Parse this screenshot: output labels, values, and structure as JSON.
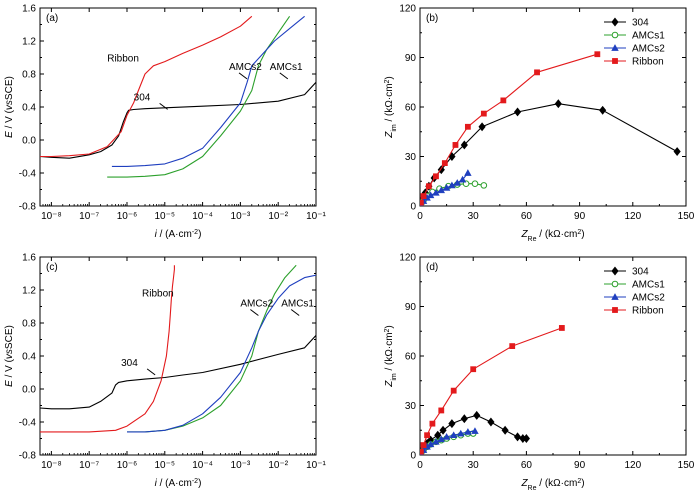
{
  "chart_data": [
    {
      "panel": "(a)",
      "type": "line",
      "xscale": "log",
      "xlim": [
        5e-09,
        0.1
      ],
      "ylim": [
        -0.8,
        1.6
      ],
      "x_tick_labels": [
        "10⁻⁸",
        "10⁻⁷",
        "10⁻⁶",
        "10⁻⁵",
        "10⁻⁴",
        "10⁻³",
        "10⁻²",
        "10⁻¹"
      ],
      "y_tick_labels": [
        "-0.8",
        "-0.4",
        "0.0",
        "0.4",
        "0.8",
        "1.2",
        "1.6"
      ],
      "xlabel": {
        "main": "i / (A·cm",
        "sup": "-2",
        "end": ")"
      },
      "ylabel": {
        "main": "E",
        "rest": " / V (",
        "italic": "vs",
        "end": "SCE)"
      },
      "series": [
        {
          "name": "304",
          "color": "#000000",
          "x": [
            5e-09,
            1e-08,
            3e-08,
            1e-07,
            2e-07,
            4e-07,
            6e-07,
            8e-07,
            1e-06,
            1.1e-06,
            1.5e-06,
            3e-06,
            1e-05,
            0.0001,
            0.001,
            0.01,
            0.05,
            0.1
          ],
          "y": [
            -0.2,
            -0.21,
            -0.22,
            -0.18,
            -0.14,
            -0.06,
            0.05,
            0.22,
            0.33,
            0.36,
            0.37,
            0.38,
            0.39,
            0.41,
            0.43,
            0.47,
            0.55,
            0.7
          ]
        },
        {
          "name": "AMCs1",
          "color": "#2ca02c",
          "x": [
            3e-07,
            1e-06,
            3e-06,
            1e-05,
            3e-05,
            0.0001,
            0.0003,
            0.001,
            0.002,
            0.003,
            0.005,
            0.01,
            0.02
          ],
          "y": [
            -0.45,
            -0.45,
            -0.44,
            -0.42,
            -0.35,
            -0.2,
            0.05,
            0.35,
            0.6,
            0.9,
            1.1,
            1.3,
            1.5
          ]
        },
        {
          "name": "AMCs2",
          "color": "#1f3fbf",
          "x": [
            4e-07,
            1e-06,
            3e-06,
            1e-05,
            3e-05,
            0.0001,
            0.0003,
            0.001,
            0.0015,
            0.002,
            0.004,
            0.008,
            0.02,
            0.05
          ],
          "y": [
            -0.32,
            -0.32,
            -0.31,
            -0.29,
            -0.22,
            -0.1,
            0.15,
            0.45,
            0.7,
            0.9,
            1.05,
            1.2,
            1.35,
            1.5
          ]
        },
        {
          "name": "Ribbon",
          "color": "#e31a1c",
          "x": [
            5e-09,
            1e-08,
            3e-08,
            1e-07,
            3e-07,
            7e-07,
            1e-06,
            1.5e-06,
            2e-06,
            3e-06,
            5e-06,
            1e-05,
            3e-05,
            0.0001,
            0.0003,
            0.001,
            0.002
          ],
          "y": [
            -0.2,
            -0.2,
            -0.19,
            -0.17,
            -0.08,
            0.1,
            0.3,
            0.45,
            0.6,
            0.8,
            0.9,
            0.95,
            1.05,
            1.15,
            1.25,
            1.38,
            1.5
          ]
        }
      ],
      "annotations": [
        {
          "text": "Ribbon",
          "x": 3e-07,
          "y": 0.95
        },
        {
          "text": "304",
          "x": 1.5e-06,
          "y": 0.48
        },
        {
          "text": "AMCs2",
          "x": 0.0005,
          "y": 0.85
        },
        {
          "text": "AMCs1",
          "x": 0.006,
          "y": 0.85
        }
      ]
    },
    {
      "panel": "(b)",
      "type": "line",
      "xlim": [
        0,
        150
      ],
      "ylim": [
        0,
        120
      ],
      "x_tick_labels": [
        "0",
        "30",
        "60",
        "90",
        "120",
        "150"
      ],
      "y_tick_labels": [
        "0",
        "30",
        "60",
        "90",
        "120"
      ],
      "xlabel": {
        "main": "Z",
        "sub": "Re",
        "rest": " / (kΩ·cm",
        "sup": "2",
        "end": ")"
      },
      "ylabel": {
        "main": "Z",
        "sub": "im",
        "rest": " / (kΩ·cm",
        "sup": "2",
        "end": ")"
      },
      "legend_position": "top-right",
      "series": [
        {
          "name": "304",
          "color": "#000000",
          "marker": "diamond",
          "x": [
            0.5,
            1.5,
            3,
            5,
            8,
            12,
            18,
            25,
            35,
            55,
            78,
            103,
            145
          ],
          "y": [
            1,
            4,
            8,
            12,
            17,
            22,
            30,
            37,
            48,
            57,
            62,
            58,
            33
          ]
        },
        {
          "name": "AMCs1",
          "color": "#2ca02c",
          "marker": "circle",
          "x": [
            0.5,
            2,
            4,
            7,
            11,
            16,
            21,
            26,
            31,
            36
          ],
          "y": [
            1,
            3.5,
            6,
            8.5,
            10.5,
            12,
            13,
            13.5,
            13.5,
            12.5
          ]
        },
        {
          "name": "AMCs2",
          "color": "#1f3fbf",
          "marker": "triangle",
          "x": [
            0.5,
            2,
            4,
            6,
            9,
            12,
            15,
            18,
            21,
            24,
            27
          ],
          "y": [
            1,
            3,
            5,
            6.5,
            8,
            9.5,
            11,
            12.5,
            14,
            16,
            20
          ]
        },
        {
          "name": "Ribbon",
          "color": "#e31a1c",
          "marker": "square",
          "x": [
            0.5,
            2,
            5,
            9,
            14,
            20,
            27,
            36,
            47,
            66,
            100
          ],
          "y": [
            2,
            6,
            12,
            18,
            26,
            37,
            48,
            56,
            64,
            81,
            92
          ]
        }
      ]
    },
    {
      "panel": "(c)",
      "type": "line",
      "xscale": "log",
      "xlim": [
        5e-09,
        0.1
      ],
      "ylim": [
        -0.8,
        1.6
      ],
      "x_tick_labels": [
        "10⁻⁸",
        "10⁻⁷",
        "10⁻⁶",
        "10⁻⁵",
        "10⁻⁴",
        "10⁻³",
        "10⁻²",
        "10⁻¹"
      ],
      "y_tick_labels": [
        "-0.8",
        "-0.4",
        "0.0",
        "0.4",
        "0.8",
        "1.2",
        "1.6"
      ],
      "xlabel": {
        "main": "i / (A·cm",
        "sup": "-2",
        "end": ")"
      },
      "ylabel": {
        "main": "E",
        "rest": " / V (",
        "italic": "vs",
        "end": "SCE)"
      },
      "series": [
        {
          "name": "304",
          "color": "#000000",
          "x": [
            5e-09,
            1e-08,
            3e-08,
            1e-07,
            2e-07,
            4e-07,
            5e-07,
            6e-07,
            1e-06,
            3e-06,
            1e-05,
            3e-05,
            0.0001,
            0.001,
            0.01,
            0.05,
            0.1
          ],
          "y": [
            -0.23,
            -0.24,
            -0.24,
            -0.22,
            -0.15,
            -0.05,
            0.05,
            0.08,
            0.1,
            0.12,
            0.14,
            0.17,
            0.2,
            0.3,
            0.42,
            0.5,
            0.65
          ]
        },
        {
          "name": "AMCs1",
          "color": "#2ca02c",
          "x": [
            1e-06,
            3e-06,
            1e-05,
            3e-05,
            0.0001,
            0.0003,
            0.001,
            0.002,
            0.003,
            0.005,
            0.008,
            0.015,
            0.03
          ],
          "y": [
            -0.52,
            -0.52,
            -0.5,
            -0.45,
            -0.35,
            -0.2,
            0.1,
            0.4,
            0.7,
            0.95,
            1.15,
            1.35,
            1.5
          ]
        },
        {
          "name": "AMCs2",
          "color": "#1f3fbf",
          "x": [
            1e-06,
            3e-06,
            1e-05,
            3e-05,
            0.0001,
            0.0003,
            0.001,
            0.002,
            0.003,
            0.005,
            0.01,
            0.02,
            0.05,
            0.1
          ],
          "y": [
            -0.52,
            -0.52,
            -0.5,
            -0.44,
            -0.3,
            -0.1,
            0.2,
            0.5,
            0.7,
            0.9,
            1.1,
            1.25,
            1.35,
            1.38
          ]
        },
        {
          "name": "Ribbon",
          "color": "#e31a1c",
          "x": [
            5e-09,
            1e-08,
            5e-08,
            1e-07,
            5e-07,
            1e-06,
            3e-06,
            5e-06,
            8e-06,
            1.1e-05,
            1.3e-05,
            1.4e-05,
            1.5e-05,
            1.6e-05,
            1.7e-05,
            1.8e-05,
            1.8e-05
          ],
          "y": [
            -0.52,
            -0.52,
            -0.52,
            -0.52,
            -0.5,
            -0.45,
            -0.3,
            -0.15,
            0.1,
            0.4,
            0.7,
            0.9,
            1.1,
            1.25,
            1.35,
            1.45,
            1.5
          ]
        }
      ],
      "annotations": [
        {
          "text": "Ribbon",
          "x": 2.5e-06,
          "y": 1.12
        },
        {
          "text": "304",
          "x": 7e-07,
          "y": 0.28
        },
        {
          "text": "AMCs2",
          "x": 0.001,
          "y": 1.0
        },
        {
          "text": "AMCs1",
          "x": 0.012,
          "y": 1.0
        }
      ]
    },
    {
      "panel": "(d)",
      "type": "line",
      "xlim": [
        0,
        150
      ],
      "ylim": [
        0,
        120
      ],
      "x_tick_labels": [
        "0",
        "30",
        "60",
        "90",
        "120",
        "150"
      ],
      "y_tick_labels": [
        "0",
        "30",
        "60",
        "90",
        "120"
      ],
      "xlabel": {
        "main": "Z",
        "sub": "Re",
        "rest": " / (kΩ·cm",
        "sup": "2",
        "end": ")"
      },
      "ylabel": {
        "main": "Z",
        "sub": "im",
        "rest": " / (kΩ·cm",
        "sup": "2",
        "end": ")"
      },
      "legend_position": "top-right",
      "series": [
        {
          "name": "304",
          "color": "#000000",
          "marker": "diamond",
          "x": [
            0.5,
            2,
            4,
            6,
            10,
            13,
            18,
            25,
            32,
            40,
            48,
            55,
            58,
            60
          ],
          "y": [
            1,
            4,
            7,
            9,
            12,
            15,
            19,
            22,
            24,
            20,
            15,
            11,
            10,
            10
          ]
        },
        {
          "name": "AMCs1",
          "color": "#2ca02c",
          "marker": "circle",
          "x": [
            0.5,
            2,
            4,
            6,
            9,
            12,
            15,
            19,
            23,
            27,
            30
          ],
          "y": [
            1,
            3,
            5,
            6.5,
            8,
            9,
            10,
            11,
            12,
            13,
            13
          ]
        },
        {
          "name": "AMCs2",
          "color": "#1f3fbf",
          "marker": "triangle",
          "x": [
            0.5,
            2,
            4,
            6,
            9,
            12,
            15,
            19,
            23,
            27,
            31
          ],
          "y": [
            1,
            3,
            5,
            6.5,
            8,
            9.5,
            11,
            12,
            13,
            14,
            14.5
          ]
        },
        {
          "name": "Ribbon",
          "color": "#e31a1c",
          "marker": "square",
          "x": [
            0.5,
            2,
            4,
            7,
            12,
            19,
            30,
            52,
            80
          ],
          "y": [
            2,
            6,
            12,
            19,
            27,
            39,
            52,
            66,
            77
          ]
        }
      ]
    }
  ]
}
